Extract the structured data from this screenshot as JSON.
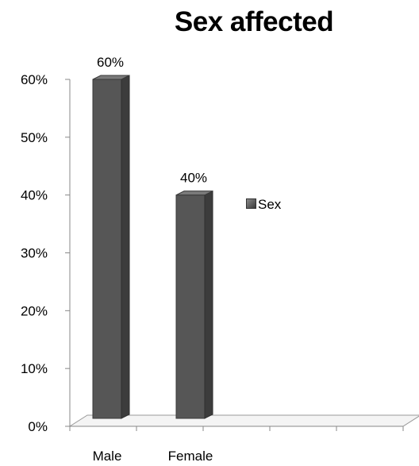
{
  "chart_data": {
    "type": "bar",
    "title": "Sex affected",
    "categories": [
      "Male",
      "Female"
    ],
    "values": [
      60,
      40
    ],
    "data_labels": [
      "60%",
      "40%"
    ],
    "series": [
      {
        "name": "Sex",
        "values": [
          60,
          40
        ]
      }
    ],
    "ylim": [
      0,
      60
    ],
    "yticks": [
      "0%",
      "10%",
      "20%",
      "30%",
      "40%",
      "50%",
      "60%"
    ],
    "xlabel": "",
    "ylabel": "",
    "legend_position": "right",
    "grid": false,
    "three_d": true,
    "bar_color": "#595959"
  }
}
